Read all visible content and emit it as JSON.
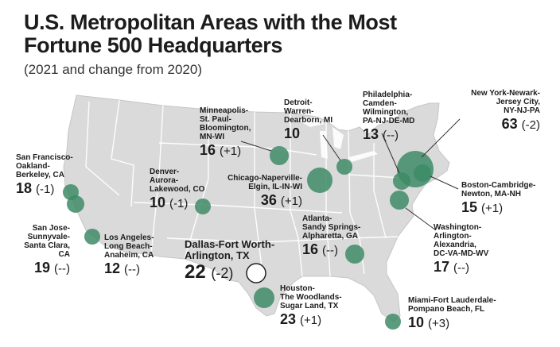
{
  "title_lines": [
    "U.S. Metropolitan Areas with the Most",
    "Fortune 500 Headquarters"
  ],
  "subtitle": "(2021 and change from 2020)",
  "colors": {
    "bubble": "#3d8b66",
    "map": "#dadada",
    "border": "#ffffff",
    "highlight": "#ffffff",
    "outline": "#222222"
  },
  "metros": [
    {
      "id": "sf",
      "name_lines": [
        "San Francisco-",
        "Oakland-",
        "Berkeley, CA"
      ],
      "count": 18,
      "change": "(-1)"
    },
    {
      "id": "sj",
      "name_lines": [
        "San Jose-",
        "Sunnyvale-",
        "Santa Clara, CA"
      ],
      "count": 19,
      "change": "(--)"
    },
    {
      "id": "la",
      "name_lines": [
        "Los Angeles-",
        "Long Beach-",
        "Anaheim, CA"
      ],
      "count": 12,
      "change": "(--)"
    },
    {
      "id": "denver",
      "name_lines": [
        "Denver-",
        "Aurora-",
        "Lakewood, CO"
      ],
      "count": 10,
      "change": "(-1)"
    },
    {
      "id": "msp",
      "name_lines": [
        "Minneapolis-",
        "St. Paul-",
        "Bloomington,",
        "MN-WI"
      ],
      "count": 16,
      "change": "(+1)"
    },
    {
      "id": "chicago",
      "name_lines": [
        "Chicago-Naperville-",
        "Elgin, IL-IN-WI"
      ],
      "count": 36,
      "change": "(+1)"
    },
    {
      "id": "detroit",
      "name_lines": [
        "Detroit-",
        "Warren-",
        "Dearborn, MI"
      ],
      "count": 10,
      "change": ""
    },
    {
      "id": "phila",
      "name_lines": [
        "Philadelphia-",
        "Camden-",
        "Wilmington,",
        "PA-NJ-DE-MD"
      ],
      "count": 13,
      "change": "(--)"
    },
    {
      "id": "nyc",
      "name_lines": [
        "New York-Newark-",
        "Jersey City,",
        "NY-NJ-PA"
      ],
      "count": 63,
      "change": "(-2)"
    },
    {
      "id": "boston",
      "name_lines": [
        "Boston-Cambridge-",
        "Newton, MA-NH"
      ],
      "count": 15,
      "change": "(+1)"
    },
    {
      "id": "dc",
      "name_lines": [
        "Washington-",
        "Arlington-",
        "Alexandria,",
        "DC-VA-MD-WV"
      ],
      "count": 17,
      "change": "(--)"
    },
    {
      "id": "atlanta",
      "name_lines": [
        "Atlanta-",
        "Sandy Springs-",
        "Alpharetta, GA"
      ],
      "count": 16,
      "change": "(--)"
    },
    {
      "id": "dallas",
      "name_lines": [
        "Dallas-Fort Worth-",
        "Arlington, TX"
      ],
      "count": 22,
      "change": "(-2)"
    },
    {
      "id": "houston",
      "name_lines": [
        "Houston-",
        "The Woodlands-",
        "Sugar Land, TX"
      ],
      "count": 23,
      "change": "(+1)"
    },
    {
      "id": "miami",
      "name_lines": [
        "Miami-Fort Lauderdale-",
        "Pompano Beach, FL"
      ],
      "count": 10,
      "change": "(+3)"
    }
  ]
}
